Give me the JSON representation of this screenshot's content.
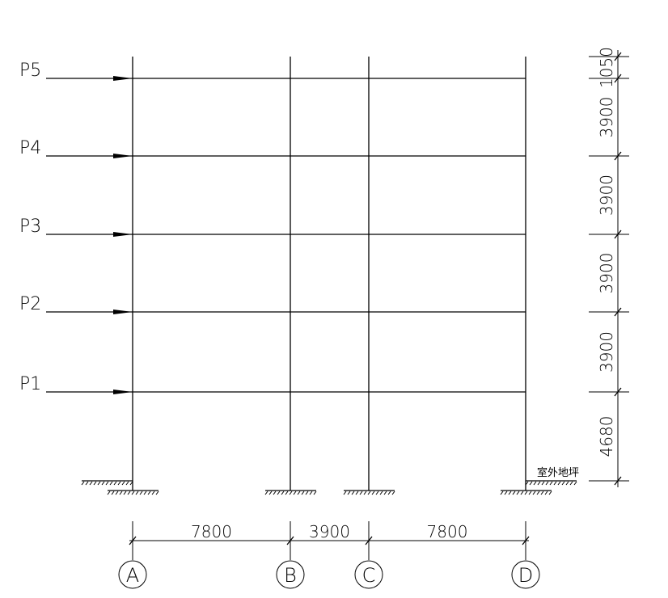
{
  "loads": [
    "P1",
    "P2",
    "P3",
    "P4",
    "P5"
  ],
  "bay_dimensions": [
    "7800",
    "3900",
    "7800"
  ],
  "storey_dimensions": [
    "4680",
    "3900",
    "3900",
    "3900",
    "3900",
    "1050"
  ],
  "axes": [
    "A",
    "B",
    "C",
    "D"
  ],
  "ground_label": "室外地坪"
}
